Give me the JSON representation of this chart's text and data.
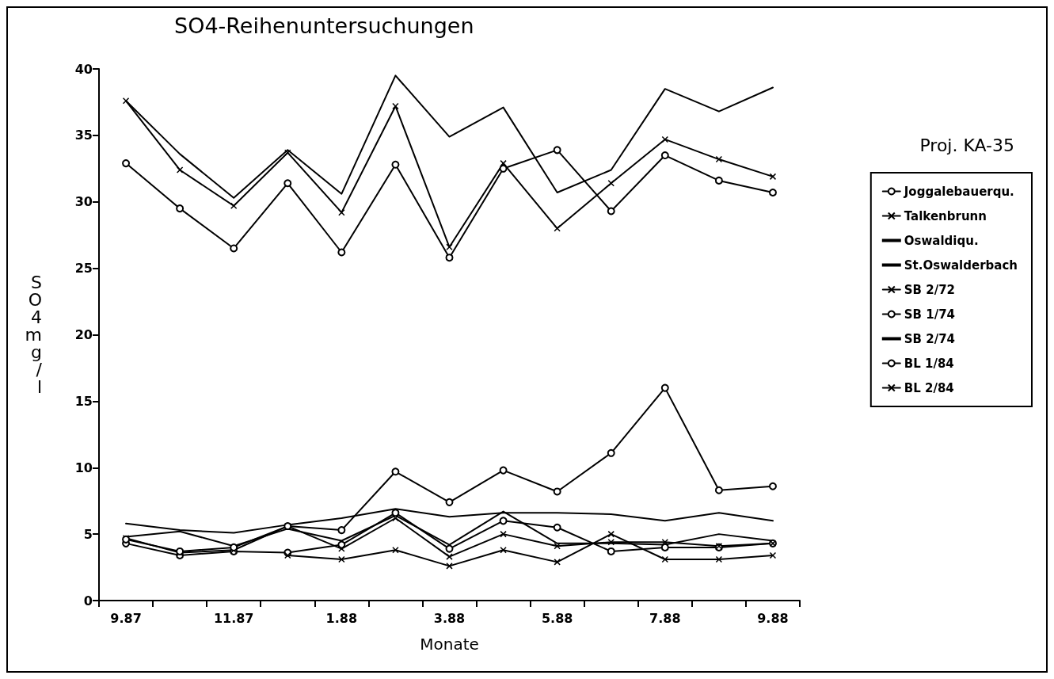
{
  "chart_data": {
    "type": "line",
    "title": "SO4-Reihenuntersuchungen",
    "xlabel": "Monate",
    "ylabel": "SO4 mg/l",
    "legend_title": "Proj. KA-35",
    "legend": "right",
    "grid": false,
    "line_style": "solid",
    "categories": [
      "9.87",
      null,
      "11.87",
      null,
      "1.88",
      null,
      "3.88",
      null,
      "5.88",
      null,
      "7.88",
      null,
      "9.88"
    ],
    "ylim": [
      0,
      40
    ],
    "yticks": [
      0,
      5,
      10,
      15,
      20,
      25,
      30,
      35,
      40
    ],
    "series": [
      {
        "name": "Joggalebauerqu.",
        "color": "#000000",
        "marker": "circle",
        "values": [
          4.3,
          3.4,
          3.7,
          3.6,
          4.2,
          6.6,
          3.9,
          6.0,
          5.5,
          3.7,
          4.0,
          4.0,
          4.3
        ]
      },
      {
        "name": "Talkenbrunn",
        "color": "#000000",
        "marker": "cross",
        "values": [
          4.7,
          3.6,
          3.8,
          5.6,
          3.9,
          6.2,
          3.3,
          5.0,
          4.1,
          4.4,
          4.4,
          4.1,
          4.3
        ]
      },
      {
        "name": "Oswaldiqu.",
        "color": "#000000",
        "marker": "none",
        "values": [
          5.8,
          5.3,
          5.1,
          5.7,
          6.2,
          6.9,
          6.3,
          6.6,
          6.6,
          6.5,
          6.0,
          6.6,
          6.0
        ]
      },
      {
        "name": "St.Oswalderbach",
        "color": "#000000",
        "marker": "none",
        "values": [
          4.8,
          5.2,
          4.1,
          5.4,
          4.5,
          6.4,
          4.2,
          6.7,
          4.3,
          4.3,
          4.2,
          5.0,
          4.5
        ]
      },
      {
        "name": "SB 2/72",
        "color": "#000000",
        "marker": "cross",
        "values": [
          37.6,
          32.4,
          29.7,
          33.7,
          29.2,
          37.2,
          26.6,
          32.9,
          28.0,
          31.4,
          34.7,
          33.2,
          31.9
        ]
      },
      {
        "name": "SB 1/74",
        "color": "#000000",
        "marker": "circle",
        "values": [
          32.9,
          29.5,
          26.5,
          31.4,
          26.2,
          32.8,
          25.8,
          32.5,
          33.9,
          29.3,
          33.5,
          31.6,
          30.7
        ]
      },
      {
        "name": "SB 2/74",
        "color": "#000000",
        "marker": "none",
        "values": [
          37.6,
          33.6,
          30.3,
          33.9,
          30.6,
          39.5,
          34.9,
          37.1,
          30.7,
          32.4,
          38.5,
          36.8,
          38.6
        ]
      },
      {
        "name": "BL 1/84",
        "color": "#000000",
        "marker": "circle",
        "values": [
          4.6,
          3.7,
          4.0,
          5.6,
          5.3,
          9.7,
          7.4,
          9.8,
          8.2,
          11.1,
          16.0,
          8.3,
          8.6
        ]
      },
      {
        "name": "BL 2/84",
        "color": "#000000",
        "marker": "cross",
        "values": [
          null,
          null,
          null,
          3.4,
          3.1,
          3.8,
          2.6,
          3.8,
          2.9,
          5.0,
          3.1,
          3.1,
          3.4
        ]
      }
    ]
  }
}
